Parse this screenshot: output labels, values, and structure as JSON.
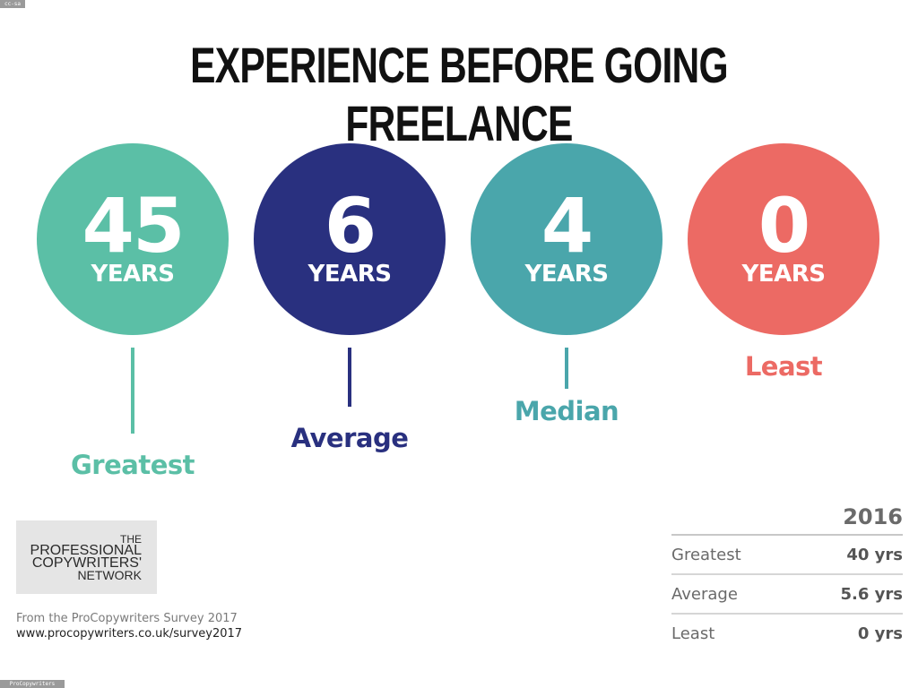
{
  "corner_tag": "cc-sa",
  "bottom_tag": "ProCopywriters",
  "title": "EXPERIENCE BEFORE GOING FREELANCE",
  "chart_data": {
    "type": "infographic",
    "title": "EXPERIENCE BEFORE GOING FREELANCE",
    "unit": "YEARS",
    "stats": [
      {
        "value": "45",
        "unit": "YEARS",
        "label": "Greatest",
        "color": "#5bbfa6"
      },
      {
        "value": "6",
        "unit": "YEARS",
        "label": "Average",
        "color": "#29307f"
      },
      {
        "value": "4",
        "unit": "YEARS",
        "label": "Median",
        "color": "#4aa6ab"
      },
      {
        "value": "0",
        "unit": "YEARS",
        "label": "Least",
        "color": "#ec6a64"
      }
    ]
  },
  "logo": {
    "lines": [
      "THE",
      "PROFESSIONAL",
      "COPYWRITERS'",
      "NETWORK"
    ]
  },
  "footnote": {
    "source": "From the ProCopywriters Survey 2017",
    "url": "www.procopywriters.co.uk/survey2017"
  },
  "comparison": {
    "year": "2016",
    "rows": [
      {
        "label": "Greatest",
        "value": "40 yrs"
      },
      {
        "label": "Average",
        "value": "5.6 yrs"
      },
      {
        "label": "Least",
        "value": "0 yrs"
      }
    ]
  }
}
